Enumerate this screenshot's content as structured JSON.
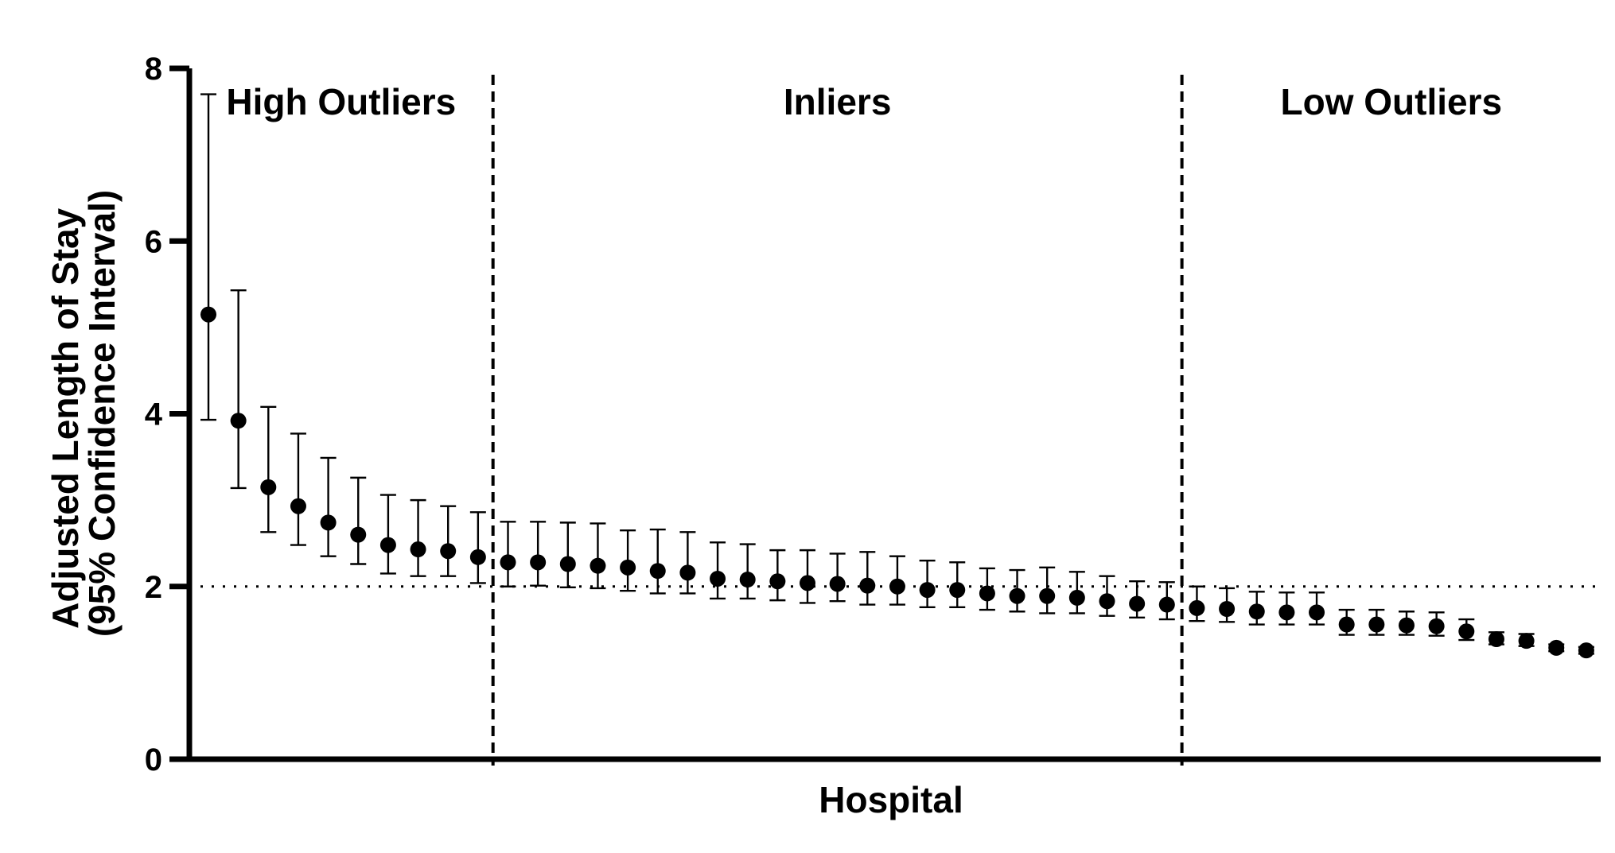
{
  "chart_data": {
    "type": "scatter",
    "subtype": "dot-plot with 95% confidence interval error bars",
    "xlabel": "Hospital",
    "ylabel_lines": [
      "Adjusted Length of Stay",
      "(95% Confidence Interval)"
    ],
    "ylim": [
      0,
      8
    ],
    "yticks": [
      "0",
      "2",
      "4",
      "6",
      "8"
    ],
    "grid": false,
    "colors": {
      "marker": "#000000",
      "lines": "#000000"
    },
    "reference_line": {
      "y": 2.0,
      "style": "dotted"
    },
    "regions": [
      {
        "label": "High Outliers",
        "start": 1,
        "end": 10
      },
      {
        "label": "Inliers",
        "start": 11,
        "end": 33
      },
      {
        "label": "Low Outliers",
        "start": 34,
        "end": 47
      }
    ],
    "region_dividers": [
      10.5,
      33.5
    ],
    "series": [
      {
        "points": [
          {
            "x": 1,
            "y": 5.15,
            "lower": 3.93,
            "upper": 7.7
          },
          {
            "x": 2,
            "y": 3.92,
            "lower": 3.14,
            "upper": 5.43
          },
          {
            "x": 3,
            "y": 3.15,
            "lower": 2.63,
            "upper": 4.08
          },
          {
            "x": 4,
            "y": 2.93,
            "lower": 2.48,
            "upper": 3.77
          },
          {
            "x": 5,
            "y": 2.74,
            "lower": 2.35,
            "upper": 3.49
          },
          {
            "x": 6,
            "y": 2.6,
            "lower": 2.26,
            "upper": 3.26
          },
          {
            "x": 7,
            "y": 2.48,
            "lower": 2.15,
            "upper": 3.06
          },
          {
            "x": 8,
            "y": 2.43,
            "lower": 2.12,
            "upper": 3.0
          },
          {
            "x": 9,
            "y": 2.41,
            "lower": 2.12,
            "upper": 2.93
          },
          {
            "x": 10,
            "y": 2.34,
            "lower": 2.04,
            "upper": 2.86
          },
          {
            "x": 11,
            "y": 2.28,
            "lower": 2.0,
            "upper": 2.75
          },
          {
            "x": 12,
            "y": 2.28,
            "lower": 2.01,
            "upper": 2.75
          },
          {
            "x": 13,
            "y": 2.26,
            "lower": 1.99,
            "upper": 2.74
          },
          {
            "x": 14,
            "y": 2.24,
            "lower": 1.98,
            "upper": 2.73
          },
          {
            "x": 15,
            "y": 2.22,
            "lower": 1.95,
            "upper": 2.65
          },
          {
            "x": 16,
            "y": 2.18,
            "lower": 1.92,
            "upper": 2.66
          },
          {
            "x": 17,
            "y": 2.16,
            "lower": 1.92,
            "upper": 2.63
          },
          {
            "x": 18,
            "y": 2.09,
            "lower": 1.86,
            "upper": 2.51
          },
          {
            "x": 19,
            "y": 2.08,
            "lower": 1.86,
            "upper": 2.49
          },
          {
            "x": 20,
            "y": 2.06,
            "lower": 1.84,
            "upper": 2.42
          },
          {
            "x": 21,
            "y": 2.04,
            "lower": 1.81,
            "upper": 2.42
          },
          {
            "x": 22,
            "y": 2.03,
            "lower": 1.83,
            "upper": 2.38
          },
          {
            "x": 23,
            "y": 2.01,
            "lower": 1.79,
            "upper": 2.4
          },
          {
            "x": 24,
            "y": 2.0,
            "lower": 1.79,
            "upper": 2.35
          },
          {
            "x": 25,
            "y": 1.96,
            "lower": 1.76,
            "upper": 2.3
          },
          {
            "x": 26,
            "y": 1.96,
            "lower": 1.76,
            "upper": 2.28
          },
          {
            "x": 27,
            "y": 1.92,
            "lower": 1.73,
            "upper": 2.21
          },
          {
            "x": 28,
            "y": 1.89,
            "lower": 1.71,
            "upper": 2.19
          },
          {
            "x": 29,
            "y": 1.89,
            "lower": 1.69,
            "upper": 2.22
          },
          {
            "x": 30,
            "y": 1.87,
            "lower": 1.69,
            "upper": 2.17
          },
          {
            "x": 31,
            "y": 1.83,
            "lower": 1.66,
            "upper": 2.12
          },
          {
            "x": 32,
            "y": 1.8,
            "lower": 1.64,
            "upper": 2.06
          },
          {
            "x": 33,
            "y": 1.79,
            "lower": 1.62,
            "upper": 2.05
          },
          {
            "x": 34,
            "y": 1.75,
            "lower": 1.6,
            "upper": 2.0
          },
          {
            "x": 35,
            "y": 1.74,
            "lower": 1.59,
            "upper": 1.98
          },
          {
            "x": 36,
            "y": 1.71,
            "lower": 1.56,
            "upper": 1.94
          },
          {
            "x": 37,
            "y": 1.7,
            "lower": 1.56,
            "upper": 1.93
          },
          {
            "x": 38,
            "y": 1.7,
            "lower": 1.56,
            "upper": 1.93
          },
          {
            "x": 39,
            "y": 1.56,
            "lower": 1.44,
            "upper": 1.73
          },
          {
            "x": 40,
            "y": 1.56,
            "lower": 1.44,
            "upper": 1.73
          },
          {
            "x": 41,
            "y": 1.55,
            "lower": 1.44,
            "upper": 1.71
          },
          {
            "x": 42,
            "y": 1.54,
            "lower": 1.43,
            "upper": 1.7
          },
          {
            "x": 43,
            "y": 1.48,
            "lower": 1.38,
            "upper": 1.62
          },
          {
            "x": 44,
            "y": 1.39,
            "lower": 1.33,
            "upper": 1.47
          },
          {
            "x": 45,
            "y": 1.37,
            "lower": 1.31,
            "upper": 1.45
          },
          {
            "x": 46,
            "y": 1.29,
            "lower": 1.25,
            "upper": 1.33
          },
          {
            "x": 47,
            "y": 1.26,
            "lower": 1.22,
            "upper": 1.3
          }
        ]
      }
    ]
  }
}
